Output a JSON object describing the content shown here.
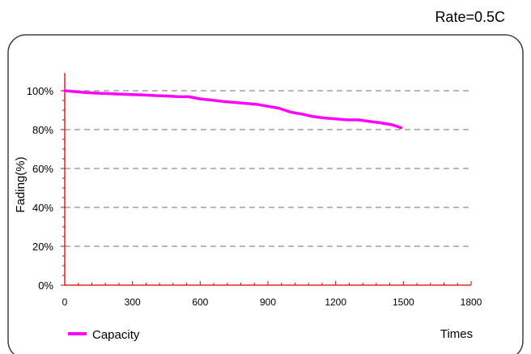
{
  "chart_data": {
    "type": "line",
    "title": "Rate=0.5C",
    "ylabel": "Fading(%)",
    "xlabel": "Times",
    "xlim": [
      0,
      1800
    ],
    "ylim": [
      0,
      100
    ],
    "x_ticks": [
      0,
      300,
      600,
      900,
      1200,
      1500,
      1800
    ],
    "x_tick_labels": [
      "0",
      "300",
      "600",
      "900",
      "1200",
      "1500",
      "1800"
    ],
    "y_ticks": [
      0,
      20,
      40,
      60,
      80,
      100
    ],
    "y_tick_labels": [
      "0%",
      "20%",
      "40%",
      "60%",
      "80%",
      "100%"
    ],
    "grid": "horizontal dashed",
    "legend_position": "bottom-left",
    "colors": {
      "series": "#ff00ff",
      "axis": "#e00000",
      "grid": "#a0a0a0",
      "frame": "#444444"
    },
    "series": [
      {
        "name": "Capacity",
        "x": [
          0,
          50,
          100,
          150,
          200,
          250,
          300,
          350,
          400,
          450,
          500,
          550,
          600,
          650,
          700,
          750,
          800,
          850,
          900,
          950,
          1000,
          1050,
          1100,
          1150,
          1200,
          1250,
          1300,
          1350,
          1400,
          1450,
          1490
        ],
        "values": [
          100,
          99.5,
          99,
          98.7,
          98.5,
          98.2,
          98,
          97.8,
          97.5,
          97.3,
          97,
          96.9,
          95.8,
          95.2,
          94.5,
          94,
          93.5,
          93,
          92,
          91,
          89,
          88,
          86.7,
          86,
          85.5,
          85,
          85,
          84.2,
          83.5,
          82.5,
          81
        ]
      }
    ]
  }
}
